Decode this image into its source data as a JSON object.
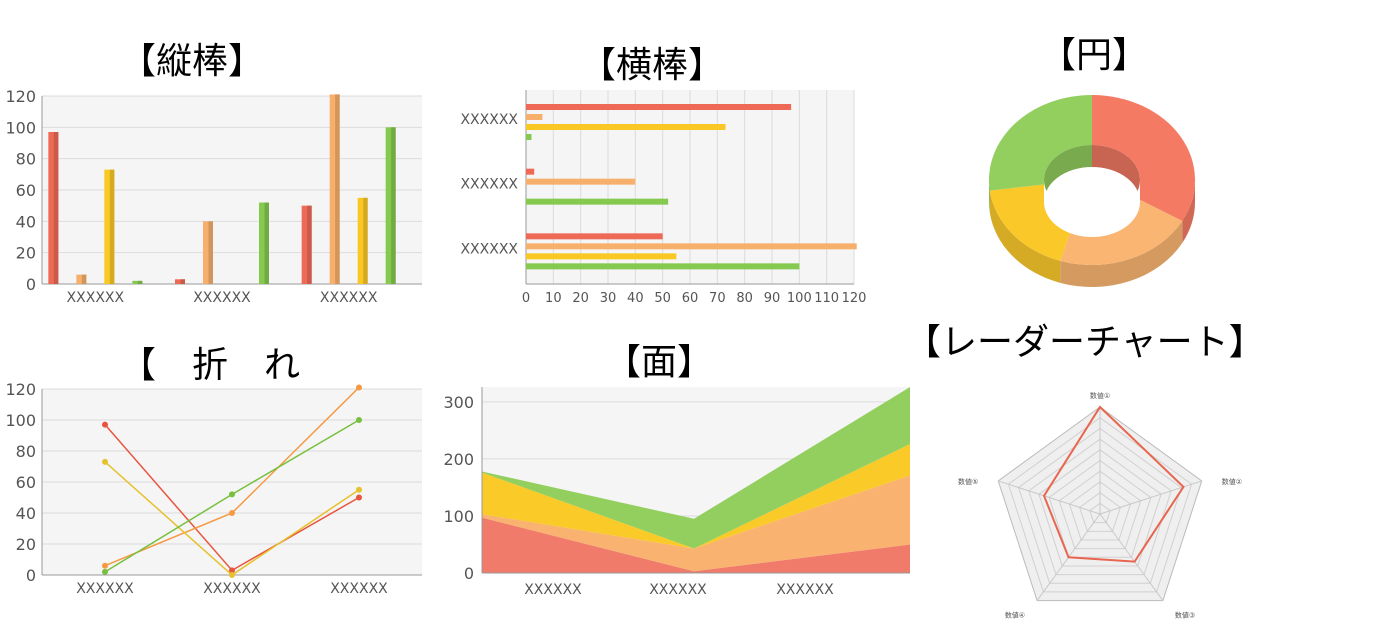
{
  "chart_data": [
    {
      "type": "bar",
      "title": "【縦棒】",
      "categories": [
        "XXXXXX",
        "XXXXXX",
        "XXXXXX"
      ],
      "series": [
        {
          "values": [
            97,
            3,
            50
          ]
        },
        {
          "values": [
            6,
            40,
            121
          ]
        },
        {
          "values": [
            73,
            0,
            55
          ]
        },
        {
          "values": [
            2,
            52,
            100
          ]
        }
      ],
      "colors": [
        "#ee6a56",
        "#f7b06c",
        "#f9c825",
        "#86c94f"
      ],
      "ylim": [
        0,
        120
      ],
      "yticks": [
        0,
        20,
        40,
        60,
        80,
        100,
        120
      ],
      "grid": true
    },
    {
      "type": "bar",
      "orientation": "horizontal",
      "title": "【横棒】",
      "categories": [
        "XXXXXX",
        "XXXXXX",
        "XXXXXX"
      ],
      "series": [
        {
          "values": [
            97,
            3,
            50
          ]
        },
        {
          "values": [
            6,
            40,
            121
          ]
        },
        {
          "values": [
            73,
            0,
            55
          ]
        },
        {
          "values": [
            2,
            52,
            100
          ]
        }
      ],
      "colors": [
        "#ee6a56",
        "#f7b06c",
        "#f9c825",
        "#86c94f"
      ],
      "xlim": [
        0,
        120
      ],
      "xticks": [
        0,
        10,
        20,
        30,
        40,
        50,
        60,
        70,
        80,
        90,
        100,
        110,
        120
      ],
      "grid": true
    },
    {
      "type": "pie",
      "style": "3d-donut",
      "title": "【円】",
      "slices": [
        {
          "value": 33
        },
        {
          "value": 22
        },
        {
          "value": 18
        },
        {
          "value": 27
        }
      ],
      "colors": [
        "#f47a64",
        "#f9b571",
        "#fbc82a",
        "#93cf5f"
      ]
    },
    {
      "type": "line",
      "title": "【　折　れ",
      "categories": [
        "XXXXXX",
        "XXXXXX",
        "XXXXXX"
      ],
      "series": [
        {
          "values": [
            97,
            3,
            50
          ]
        },
        {
          "values": [
            6,
            40,
            121
          ]
        },
        {
          "values": [
            73,
            0,
            55
          ]
        },
        {
          "values": [
            2,
            52,
            100
          ]
        }
      ],
      "colors": [
        "#e8553f",
        "#f59a42",
        "#e7c12a",
        "#77c03e"
      ],
      "ylim": [
        0,
        120
      ],
      "yticks": [
        0,
        20,
        40,
        60,
        80,
        100,
        120
      ],
      "grid": true
    },
    {
      "type": "area",
      "stacked": true,
      "title": "【面】",
      "categories": [
        "XXXXXX",
        "XXXXXX",
        "XXXXXX"
      ],
      "series": [
        {
          "values": [
            97,
            3,
            50
          ]
        },
        {
          "values": [
            6,
            40,
            121
          ]
        },
        {
          "values": [
            73,
            0,
            55
          ]
        },
        {
          "values": [
            2,
            52,
            100
          ]
        }
      ],
      "colors": [
        "#f07b6a",
        "#f9b270",
        "#facb28",
        "#93cf5f"
      ],
      "ylim": [
        0,
        326
      ],
      "yticks": [
        0,
        100,
        200,
        300
      ],
      "grid": true
    },
    {
      "type": "radar",
      "title": "【レーダーチャート】",
      "axes": [
        "数値①",
        "数値②",
        "数値③",
        "数値④",
        "数値⑤"
      ],
      "values": [
        1.0,
        0.82,
        0.55,
        0.5,
        0.55
      ],
      "levels": 10,
      "color": "#e8664f"
    }
  ]
}
